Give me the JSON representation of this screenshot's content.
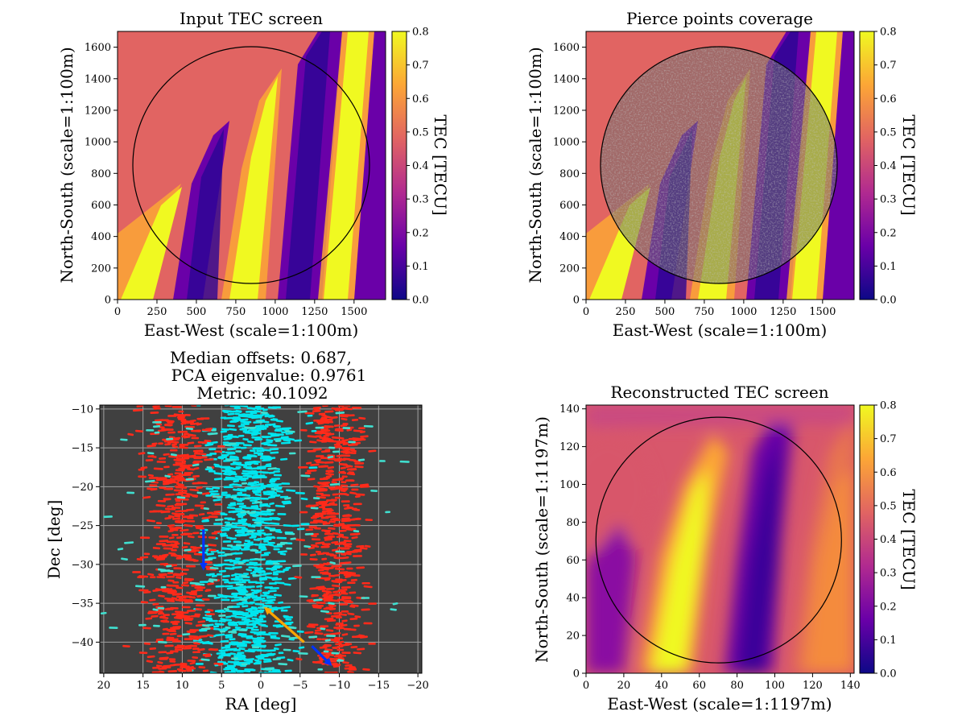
{
  "figure": {
    "background": "#ffffff"
  },
  "colormap": {
    "name": "plasma",
    "stops": [
      "#0d0887",
      "#6a00a8",
      "#b12a90",
      "#e16462",
      "#fca636",
      "#f0f921"
    ]
  },
  "panels": [
    {
      "id": "input-tec",
      "title": "Input TEC screen",
      "xlabel": "East-West (scale=1:100m)",
      "ylabel": "North-South (scale=1:100m)",
      "xlim": [
        0,
        1700
      ],
      "ylim": [
        0,
        1700
      ],
      "xticks": [
        "0",
        "250",
        "500",
        "750",
        "1000",
        "1250",
        "1500"
      ],
      "yticks": [
        "0",
        "200",
        "400",
        "600",
        "800",
        "1000",
        "1200",
        "1400",
        "1600"
      ],
      "circle": {
        "cx": 850,
        "cy": 850,
        "r": 750
      },
      "colorbar": {
        "label": "TEC [TECU]",
        "range": [
          0,
          0.8
        ],
        "ticks": [
          "0.0",
          "0.1",
          "0.2",
          "0.3",
          "0.4",
          "0.5",
          "0.6",
          "0.7",
          "0.8"
        ]
      }
    },
    {
      "id": "pierce-points",
      "title": "Pierce points coverage",
      "xlabel": "East-West (scale=1:100m)",
      "ylabel": "North-South (scale=1:100m)",
      "xlim": [
        0,
        1700
      ],
      "ylim": [
        0,
        1700
      ],
      "xticks": [
        "0",
        "250",
        "500",
        "750",
        "1000",
        "1250",
        "1500"
      ],
      "yticks": [
        "0",
        "200",
        "400",
        "600",
        "800",
        "1000",
        "1200",
        "1400",
        "1600"
      ],
      "circle": {
        "cx": 850,
        "cy": 850,
        "r": 750
      },
      "colorbar": {
        "label": "TEC [TECU]",
        "range": [
          0,
          0.8
        ],
        "ticks": [
          "0.0",
          "0.1",
          "0.2",
          "0.3",
          "0.4",
          "0.5",
          "0.6",
          "0.7",
          "0.8"
        ]
      }
    },
    {
      "id": "offsets",
      "title_lines": [
        "Median offsets: 0.687,",
        "PCA eigenvalue: 0.9761",
        "Metric: 40.1092"
      ],
      "xlabel": "RA [deg]",
      "ylabel": "Dec [deg]",
      "xlim": [
        20.5,
        -20.5
      ],
      "ylim": [
        -44,
        -9.5
      ],
      "xticks": [
        "20",
        "15",
        "10",
        "5",
        "0",
        "−5",
        "−10",
        "−15",
        "−20"
      ],
      "yticks": [
        "−10",
        "−15",
        "−20",
        "−25",
        "−30",
        "−35",
        "−40"
      ],
      "background": "#404040",
      "grid": true,
      "grid_color": "#a0a0a0",
      "groups": [
        {
          "color": "#00e5ee",
          "ra_center": 1.5,
          "ra_spread": 5.5,
          "count": 900
        },
        {
          "color": "#ff2a1a",
          "ra_center": 10.5,
          "ra_spread": 4.5,
          "count": 520
        },
        {
          "color": "#ff2a1a",
          "ra_center": -9.5,
          "ra_spread": 3.5,
          "count": 520
        },
        {
          "color": "#40e0d0",
          "ra_center": 0,
          "ra_spread": 20,
          "count": 160
        }
      ],
      "highlight_arrows": [
        {
          "color": "#0033ff",
          "ra": 7.3,
          "dec": -25.5,
          "dra": 0,
          "ddec": -4.5
        },
        {
          "color": "#ffa500",
          "ra": -5.5,
          "dec": -40,
          "dra": 4.5,
          "ddec": 4
        },
        {
          "color": "#0033ff",
          "ra": -6.5,
          "dec": -40.5,
          "dra": -2,
          "ddec": -2
        }
      ]
    },
    {
      "id": "reconstructed-tec",
      "title": "Reconstructed TEC screen",
      "xlabel": "East-West (scale=1:1197m)",
      "ylabel": "North-South (scale=1:1197m)",
      "xlim": [
        0,
        142
      ],
      "ylim": [
        0,
        142
      ],
      "xticks": [
        "0",
        "20",
        "40",
        "60",
        "80",
        "100",
        "120",
        "140"
      ],
      "yticks": [
        "0",
        "20",
        "40",
        "60",
        "80",
        "100",
        "120",
        "140"
      ],
      "circle": {
        "cx": 70,
        "cy": 70,
        "r": 65
      },
      "colorbar": {
        "label": "TEC [TECU]",
        "range": [
          0,
          0.8
        ],
        "ticks": [
          "0.0",
          "0.1",
          "0.2",
          "0.3",
          "0.4",
          "0.5",
          "0.6",
          "0.7",
          "0.8"
        ]
      }
    }
  ]
}
